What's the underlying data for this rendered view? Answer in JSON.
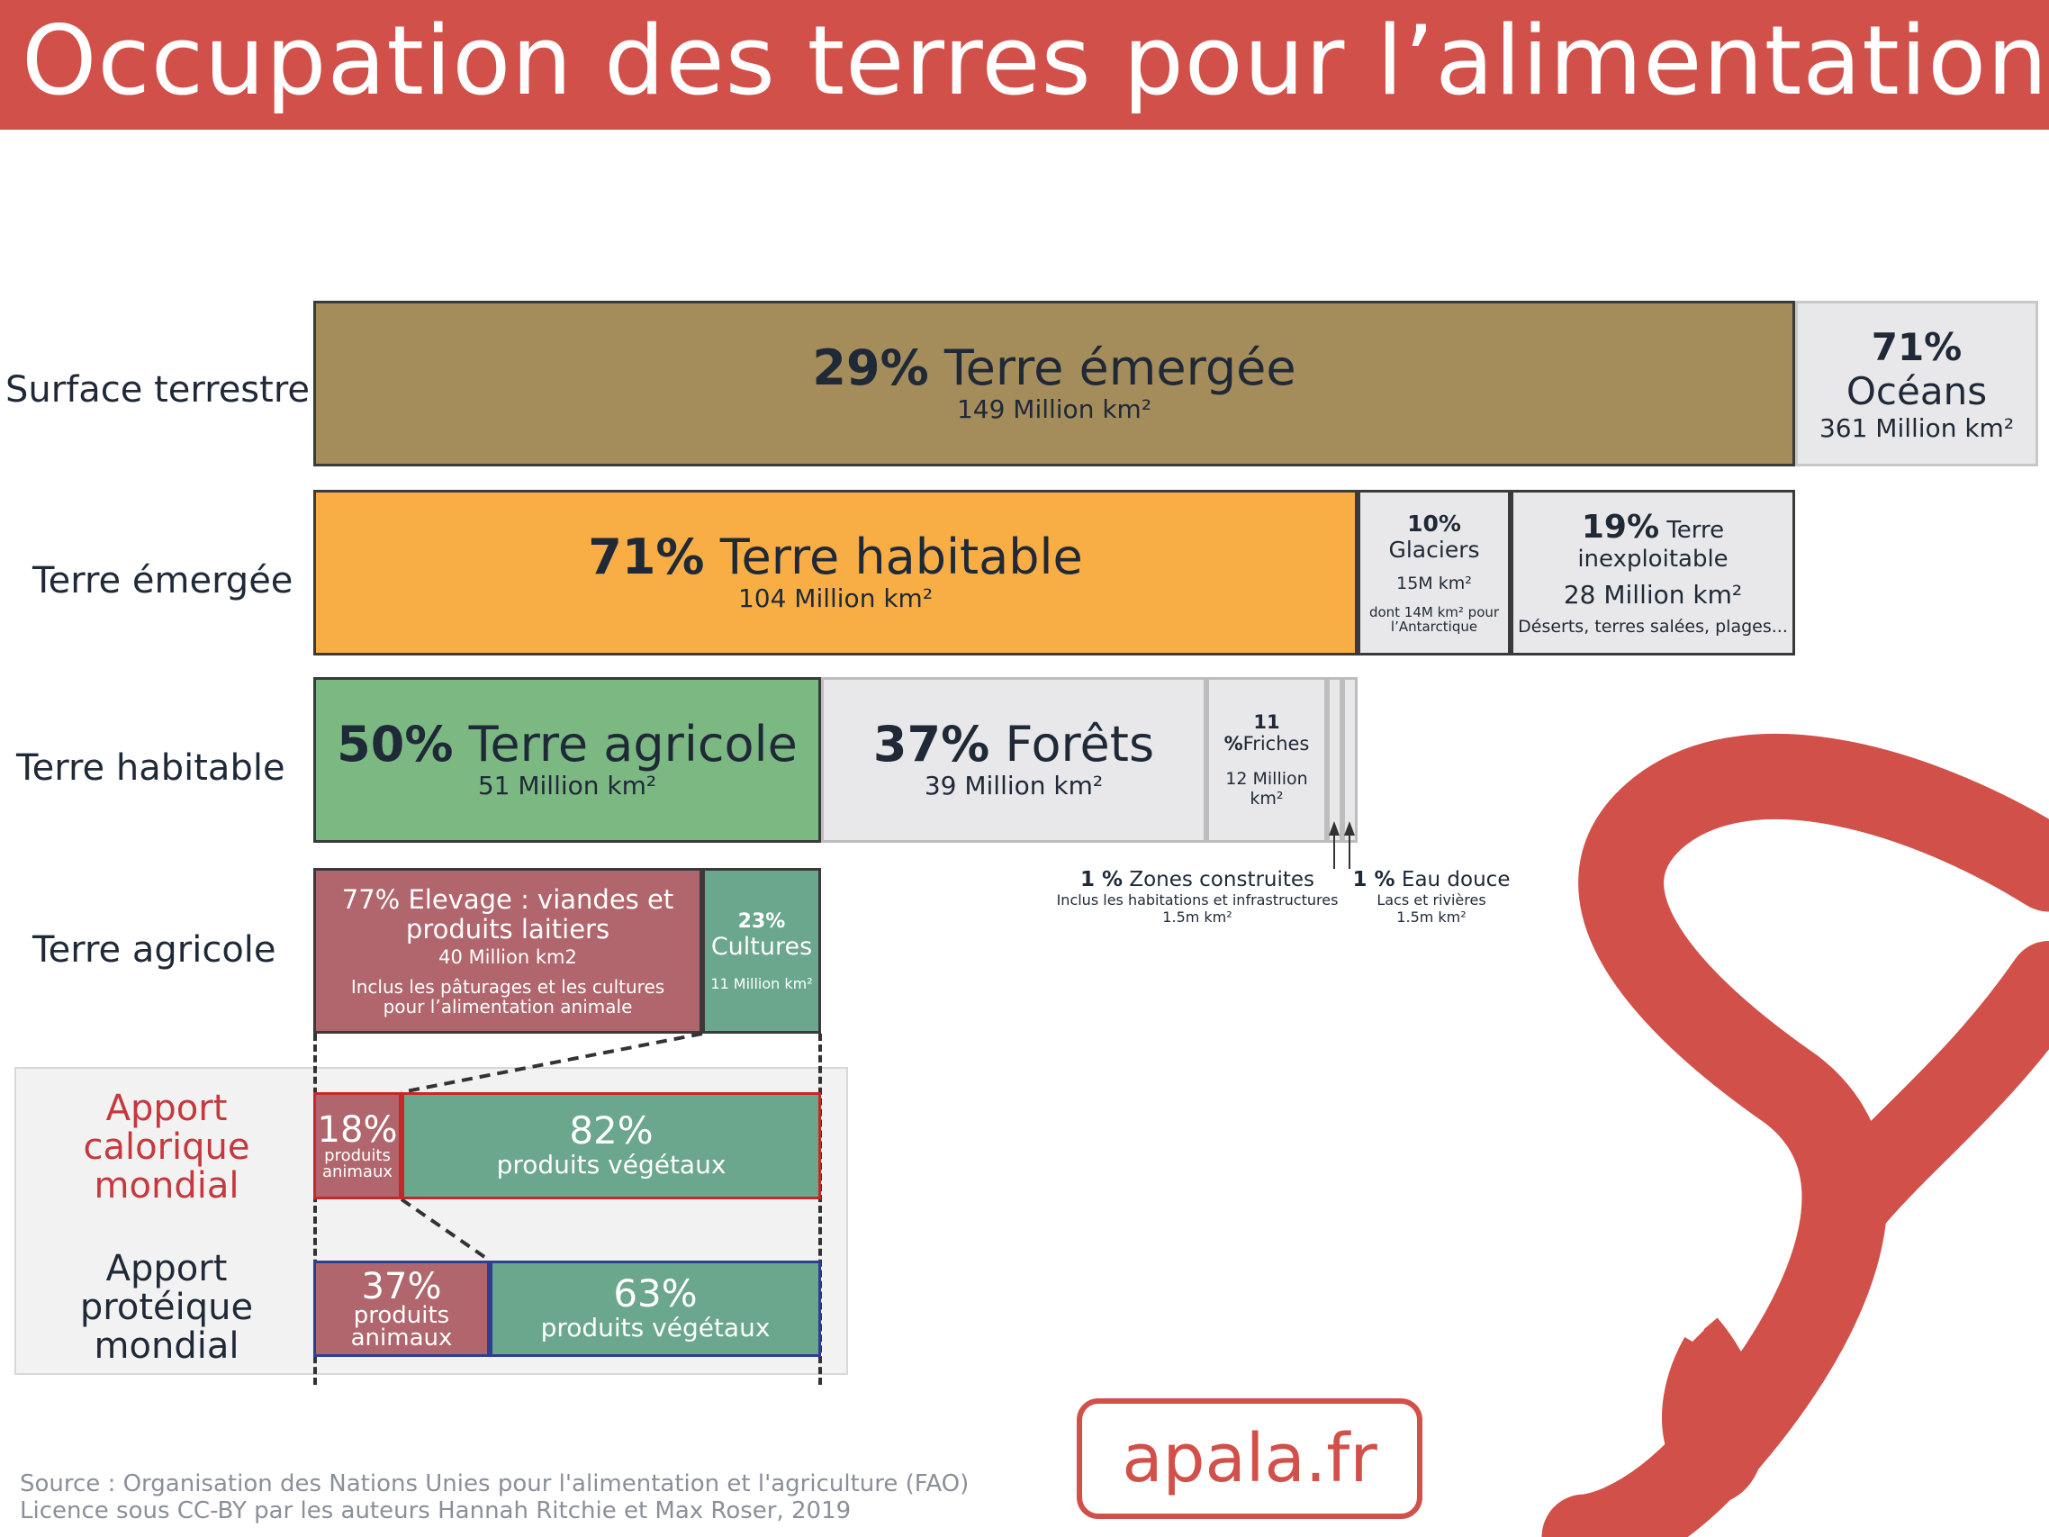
{
  "header": {
    "title": "Occupation des terres pour l’alimentation"
  },
  "rows": {
    "surface": "Surface terrestre",
    "emergee": "Terre émergée",
    "habitable": "Terre habitable",
    "agricole": "Terre agricole",
    "calorique": "Apport calorique mondial",
    "proteique": "Apport protéique mondial"
  },
  "chart_data": {
    "type": "bar",
    "stacked": true,
    "orientation": "horizontal",
    "rows": [
      {
        "row": "Surface terrestre",
        "segments": [
          {
            "label": "Terre émergée",
            "percent": 29,
            "area": "149 Million km²",
            "color": "#a58c5b"
          },
          {
            "label": "Océans",
            "percent": 71,
            "area": "361 Million km²",
            "color": "#e8e8ea"
          }
        ]
      },
      {
        "row": "Terre émergée",
        "segments": [
          {
            "label": "Terre habitable",
            "percent": 71,
            "area": "104 Million km²",
            "color": "#f8ae45"
          },
          {
            "label": "Glaciers",
            "percent": 10,
            "area": "15M km²",
            "note": "dont 14M km² pour l’Antarctique",
            "color": "#e8e8ea"
          },
          {
            "label": "Terre inexploitable",
            "percent": 19,
            "area": "28 Million km²",
            "note": "Déserts, terres salées, plages...",
            "color": "#e8e8ea"
          }
        ]
      },
      {
        "row": "Terre habitable",
        "segments": [
          {
            "label": "Terre agricole",
            "percent": 50,
            "area": "51 Million km²",
            "color": "#7cb882"
          },
          {
            "label": "Forêts",
            "percent": 37,
            "area": "39 Million km²",
            "color": "#e8e8ea"
          },
          {
            "label": "Friches",
            "percent": 11,
            "area": "12 Million km²",
            "color": "#e8e8ea"
          },
          {
            "label": "Zones construites",
            "percent": 1,
            "area": "1.5m km²",
            "note": "Inclus les habitations et infrastructures",
            "color": "#e8e8ea"
          },
          {
            "label": "Eau douce",
            "percent": 1,
            "area": "1.5m km²",
            "note": "Lacs et rivières",
            "color": "#e8e8ea"
          }
        ]
      },
      {
        "row": "Terre agricole",
        "segments": [
          {
            "label": "Elevage : viandes et produits laitiers",
            "percent": 77,
            "area": "40 Million km2",
            "note": "Inclus les pâturages et les cultures pour l’alimentation animale",
            "color": "#b0666c"
          },
          {
            "label": "Cultures",
            "percent": 23,
            "area": "11 Million km²",
            "color": "#6aa78c"
          }
        ]
      },
      {
        "row": "Apport calorique mondial",
        "segments": [
          {
            "label": "produits animaux",
            "percent": 18,
            "color": "#b0666c"
          },
          {
            "label": "produits végétaux",
            "percent": 82,
            "color": "#6aa78c"
          }
        ]
      },
      {
        "row": "Apport protéique mondial",
        "segments": [
          {
            "label": "produits animaux",
            "percent": 37,
            "color": "#b0666c"
          },
          {
            "label": "produits végétaux",
            "percent": 63,
            "color": "#6aa78c"
          }
        ]
      }
    ]
  },
  "labels": {
    "s1_pct": "29%",
    "s1_name": "Terre émergée",
    "s1_area": "149 Million km²",
    "s2_pct": "71%",
    "s2_name": "Océans",
    "s2_area": "361 Million km²",
    "e1_pct": "71%",
    "e1_name": "Terre habitable",
    "e1_area": "104 Million km²",
    "e2_pct": "10%",
    "e2_name": "Glaciers",
    "e2_area": "15M km²",
    "e2_note": "dont 14M km² pour l’Antarctique",
    "e3_pct": "19%",
    "e3_name": "Terre inexploitable",
    "e3_area": "28 Million km²",
    "e3_note": "Déserts, terres salées, plages...",
    "h1_pct": "50%",
    "h1_name": "Terre agricole",
    "h1_area": "51 Million km²",
    "h2_pct": "37%",
    "h2_name": "Forêts",
    "h2_area": "39 Million km²",
    "h3_pct": "11 %",
    "h3_name": "Friches",
    "h3_area": "12 Million km²",
    "h4_pct": "1 %",
    "h4_name": "Zones construites",
    "h4_note": "Inclus les habitations et infrastructures",
    "h4_area": "1.5m km²",
    "h5_pct": "1 %",
    "h5_name": "Eau douce",
    "h5_note": "Lacs et rivières",
    "h5_area": "1.5m km²",
    "a1_title": "77% Elevage : viandes et produits laitiers",
    "a1_area": "40 Million km2",
    "a1_note": "Inclus les pâturages et les cultures pour l’alimentation animale",
    "a2_pct": "23%",
    "a2_name": "Cultures",
    "a2_area": "11 Million km²",
    "c1_pct": "18%",
    "c1_name": "produits animaux",
    "c2_pct": "82%",
    "c2_name": "produits végétaux",
    "p1_pct": "37%",
    "p1_name": "produits animaux",
    "p2_pct": "63%",
    "p2_name": "produits végétaux"
  },
  "footer": {
    "source": "Source : Organisation des Nations Unies pour l'alimentation et l'agriculture (FAO)",
    "licence": "Licence sous CC-BY par les auteurs Hannah Ritchie et Max Roser, 2019"
  },
  "brand": {
    "logo_text": "apala.fr",
    "accent": "#d2504a"
  }
}
